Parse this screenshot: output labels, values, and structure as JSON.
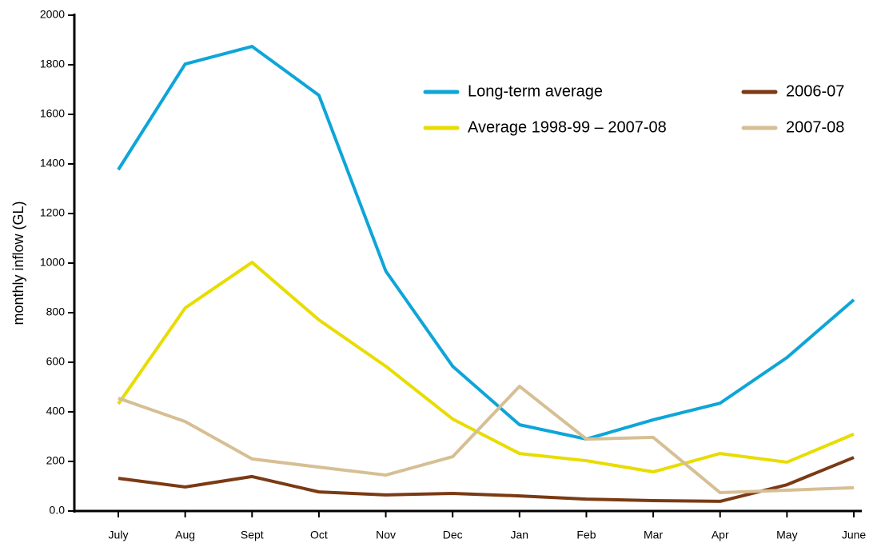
{
  "chart_data": {
    "type": "line",
    "y_label": "monthly inflow (GL)",
    "categories": [
      "July",
      "Aug",
      "Sept",
      "Oct",
      "Nov",
      "Dec",
      "Jan",
      "Feb",
      "Mar",
      "Apr",
      "May",
      "June"
    ],
    "ylim": [
      0,
      2000
    ],
    "yticks": [
      {
        "value": 0,
        "label": "0.0"
      },
      200,
      400,
      600,
      800,
      1000,
      1200,
      1400,
      1600,
      1800,
      2000
    ],
    "series": [
      {
        "name": "Long-term average",
        "color": "#0ea5d8",
        "values": [
          1377,
          1803,
          1874,
          1677,
          968,
          584,
          348,
          290,
          368,
          435,
          619,
          852
        ]
      },
      {
        "name": "Average 1998-99 – 2007-08",
        "color": "#e8dc00",
        "values": [
          432,
          819,
          1003,
          771,
          584,
          371,
          232,
          203,
          158,
          232,
          197,
          310
        ]
      },
      {
        "name": "2006-07",
        "color": "#7a3a14",
        "values": [
          132,
          97,
          139,
          77,
          65,
          71,
          61,
          48,
          42,
          39,
          106,
          216
        ]
      },
      {
        "name": "2007-08",
        "color": "#d6bf94",
        "values": [
          455,
          361,
          210,
          177,
          145,
          219,
          503,
          290,
          297,
          74,
          84,
          94
        ]
      }
    ]
  }
}
